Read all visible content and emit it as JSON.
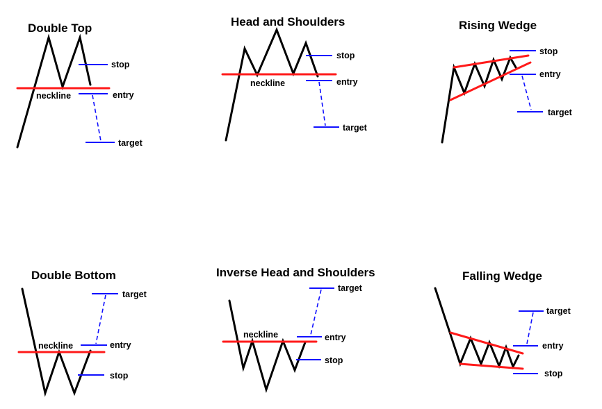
{
  "colors": {
    "price": "#000000",
    "support_resistance": "#ff1a1a",
    "levels": "#1010ff"
  },
  "patterns": {
    "double_top": {
      "title": "Double Top",
      "neckline": "neckline",
      "stop": "stop",
      "entry": "entry",
      "target": "target"
    },
    "head_and_shoulders": {
      "title": "Head and Shoulders",
      "neckline": "neckline",
      "stop": "stop",
      "entry": "entry",
      "target": "target"
    },
    "rising_wedge": {
      "title": "Rising Wedge",
      "stop": "stop",
      "entry": "entry",
      "target": "target"
    },
    "double_bottom": {
      "title": "Double Bottom",
      "neckline": "neckline",
      "target": "target",
      "entry": "entry",
      "stop": "stop"
    },
    "inverse_head_and_shoulders": {
      "title": "Inverse Head and Shoulders",
      "neckline": "neckline",
      "target": "target",
      "entry": "entry",
      "stop": "stop"
    },
    "falling_wedge": {
      "title": "Falling Wedge",
      "target": "target",
      "entry": "entry",
      "stop": "stop"
    }
  }
}
